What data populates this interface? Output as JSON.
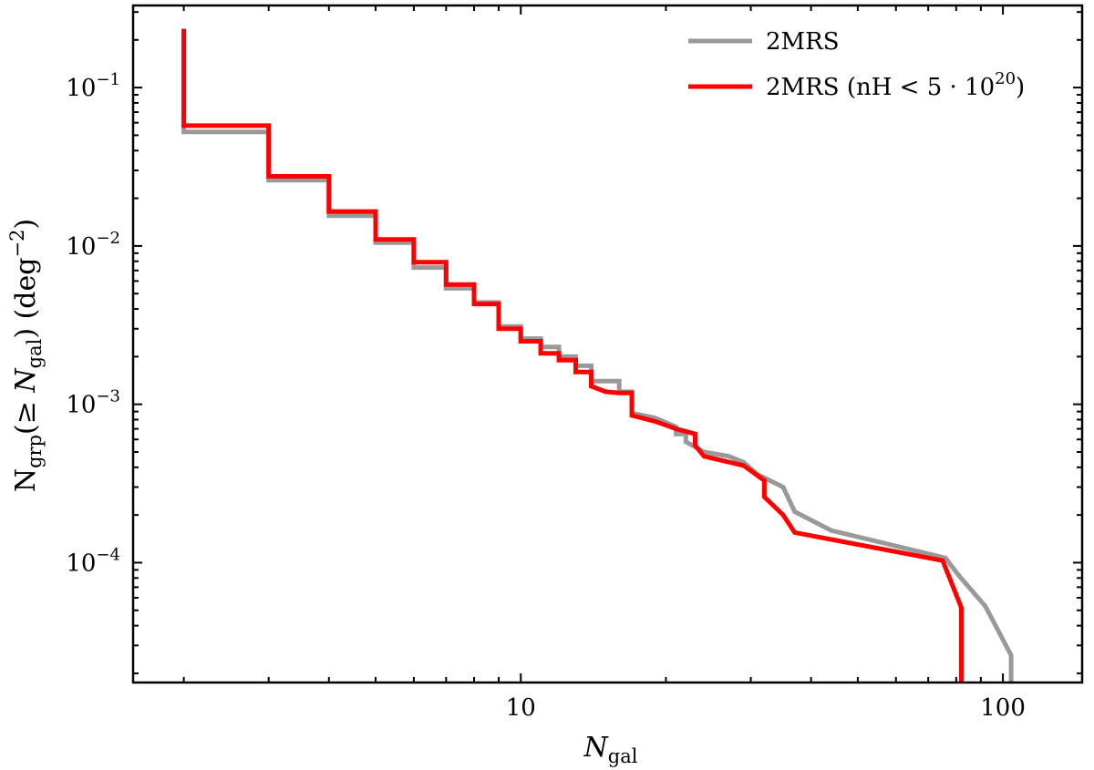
{
  "chart_data": {
    "type": "line",
    "xscale": "log",
    "yscale": "log",
    "xlim": [
      1.57,
      146
    ],
    "ylim": [
      1.75e-05,
      0.33
    ],
    "xlabel": "N_gal",
    "ylabel": "N_grp(≥N_gal) (deg^-2)",
    "title": "",
    "grid": false,
    "legend_position": "top-right",
    "x_ticks": [
      {
        "value": 10,
        "label": "10"
      },
      {
        "value": 100,
        "label": "100"
      }
    ],
    "y_ticks": [
      {
        "value": 0.1,
        "base": "10",
        "exp": "−1"
      },
      {
        "value": 0.01,
        "base": "10",
        "exp": "−2"
      },
      {
        "value": 0.001,
        "base": "10",
        "exp": "−3"
      },
      {
        "value": 0.0001,
        "base": "10",
        "exp": "−4"
      }
    ],
    "series": [
      {
        "name": "2MRS",
        "color": "#999999",
        "points": [
          [
            2,
            0.235
          ],
          [
            2,
            0.0525
          ],
          [
            3,
            0.0525
          ],
          [
            3,
            0.026
          ],
          [
            4,
            0.026
          ],
          [
            4,
            0.0155
          ],
          [
            5,
            0.0155
          ],
          [
            5,
            0.0105
          ],
          [
            6,
            0.0105
          ],
          [
            6,
            0.0073
          ],
          [
            7,
            0.0073
          ],
          [
            7,
            0.0054
          ],
          [
            8,
            0.0054
          ],
          [
            8,
            0.0044
          ],
          [
            9,
            0.0044
          ],
          [
            9,
            0.0031
          ],
          [
            10,
            0.0031
          ],
          [
            10,
            0.0026
          ],
          [
            11,
            0.0026
          ],
          [
            11,
            0.0023
          ],
          [
            12,
            0.0023
          ],
          [
            12,
            0.002
          ],
          [
            13,
            0.002
          ],
          [
            13,
            0.00175
          ],
          [
            14,
            0.00175
          ],
          [
            14,
            0.0014
          ],
          [
            16,
            0.0014
          ],
          [
            16,
            0.0012
          ],
          [
            17,
            0.0012
          ],
          [
            17,
            0.00088
          ],
          [
            19,
            0.00082
          ],
          [
            21,
            0.00072
          ],
          [
            21,
            0.00065
          ],
          [
            22,
            0.00065
          ],
          [
            22,
            0.00058
          ],
          [
            24,
            0.0005
          ],
          [
            27,
            0.00047
          ],
          [
            29,
            0.00043
          ],
          [
            31,
            0.00036
          ],
          [
            35,
            0.0003
          ],
          [
            37,
            0.00021
          ],
          [
            44,
            0.00016
          ],
          [
            76,
            0.000107
          ],
          [
            81,
            8.3e-05
          ],
          [
            92,
            5.3e-05
          ],
          [
            104,
            2.6e-05
          ],
          [
            104,
            1.75e-05
          ]
        ]
      },
      {
        "name": "2MRS (nH <5·10^20)",
        "color": "#ff0000",
        "points": [
          [
            2,
            0.235
          ],
          [
            2,
            0.0575
          ],
          [
            3,
            0.0575
          ],
          [
            3,
            0.0275
          ],
          [
            4,
            0.0275
          ],
          [
            4,
            0.0165
          ],
          [
            5,
            0.0165
          ],
          [
            5,
            0.011
          ],
          [
            6,
            0.011
          ],
          [
            6,
            0.0079
          ],
          [
            7,
            0.0079
          ],
          [
            7,
            0.0057
          ],
          [
            8,
            0.0057
          ],
          [
            8,
            0.0043
          ],
          [
            9,
            0.0043
          ],
          [
            9,
            0.003
          ],
          [
            10,
            0.003
          ],
          [
            10,
            0.0025
          ],
          [
            11,
            0.0025
          ],
          [
            11,
            0.0021
          ],
          [
            12,
            0.0021
          ],
          [
            12,
            0.0019
          ],
          [
            13,
            0.0019
          ],
          [
            13,
            0.0016
          ],
          [
            14,
            0.0016
          ],
          [
            14,
            0.0013
          ],
          [
            15,
            0.0012
          ],
          [
            16,
            0.00118
          ],
          [
            17,
            0.00118
          ],
          [
            17,
            0.00085
          ],
          [
            19,
            0.00078
          ],
          [
            21,
            0.0007
          ],
          [
            23,
            0.00065
          ],
          [
            23,
            0.00055
          ],
          [
            24,
            0.00047
          ],
          [
            29,
            0.00041
          ],
          [
            32,
            0.00033
          ],
          [
            32,
            0.00026
          ],
          [
            35,
            0.0002
          ],
          [
            37,
            0.000155
          ],
          [
            75,
            0.000103
          ],
          [
            82,
            5.2e-05
          ],
          [
            82,
            1.75e-05
          ]
        ]
      }
    ]
  },
  "legend": {
    "items": [
      {
        "label": "2MRS",
        "label_base": "2MRS",
        "label_sup": "",
        "label_suffix": "",
        "color": "#999999"
      },
      {
        "label": "2MRS (nH <5·10^20)",
        "label_base": "2MRS (nH  < 5 · 10",
        "label_sup": "20",
        "label_suffix": ")",
        "color": "#ff0000"
      }
    ]
  }
}
